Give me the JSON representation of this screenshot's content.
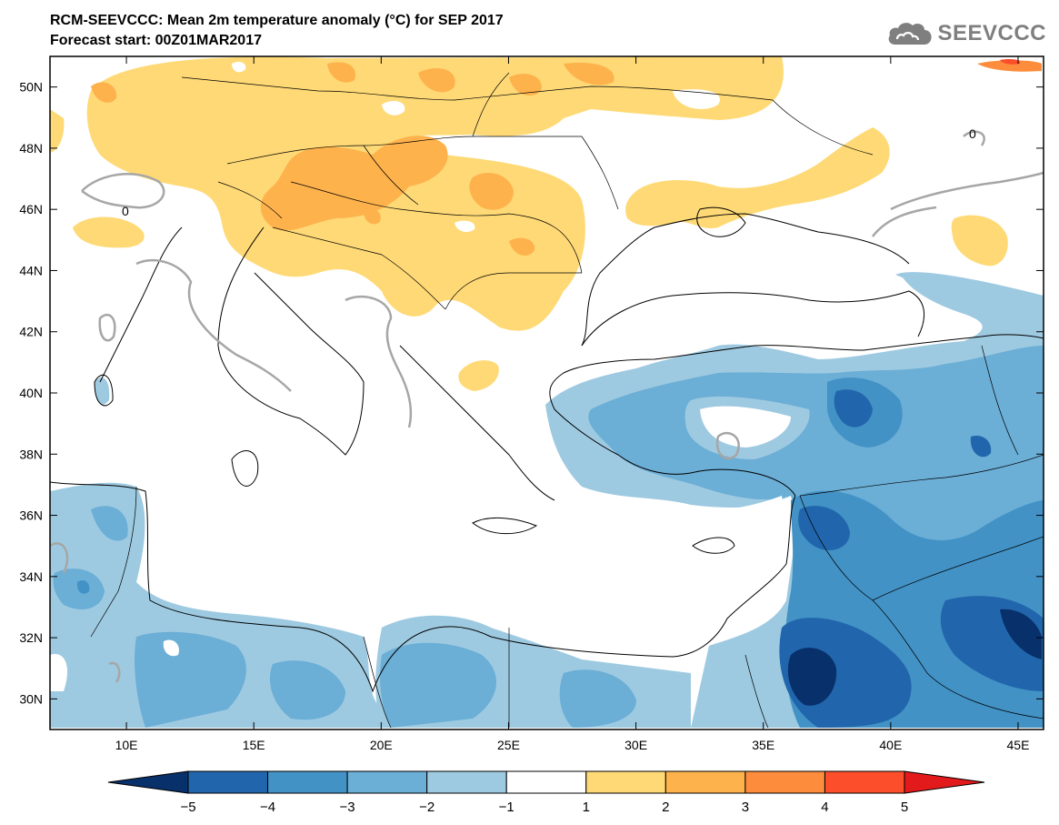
{
  "header": {
    "title_line1": "RCM-SEEVCCC: Mean 2m temperature anomaly (°C) for SEP 2017",
    "title_line2": "Forecast start: 00Z01MAR2017"
  },
  "logo": {
    "text": "SEEVCCC",
    "icon": "cloud-icon",
    "color": "#7f7f7f"
  },
  "map": {
    "lon_range": [
      7,
      46
    ],
    "lat_range": [
      29,
      51
    ],
    "lon_ticks": [
      {
        "value": 10,
        "label": "10E"
      },
      {
        "value": 15,
        "label": "15E"
      },
      {
        "value": 20,
        "label": "20E"
      },
      {
        "value": 25,
        "label": "25E"
      },
      {
        "value": 30,
        "label": "30E"
      },
      {
        "value": 35,
        "label": "35E"
      },
      {
        "value": 40,
        "label": "40E"
      },
      {
        "value": 45,
        "label": "45E"
      }
    ],
    "lat_ticks": [
      {
        "value": 30,
        "label": "30N"
      },
      {
        "value": 32,
        "label": "32N"
      },
      {
        "value": 34,
        "label": "34N"
      },
      {
        "value": 36,
        "label": "36N"
      },
      {
        "value": 38,
        "label": "38N"
      },
      {
        "value": 40,
        "label": "40N"
      },
      {
        "value": 42,
        "label": "42N"
      },
      {
        "value": 44,
        "label": "44N"
      },
      {
        "value": 46,
        "label": "46N"
      },
      {
        "value": 48,
        "label": "48N"
      },
      {
        "value": 50,
        "label": "50N"
      }
    ],
    "contour_labels": [
      {
        "lon": 9.8,
        "lat": 46.0,
        "text": "0"
      },
      {
        "lon": 37.5,
        "lat": 47.2,
        "text": "0"
      }
    ]
  },
  "colorbar": {
    "levels": [
      "−5",
      "−4",
      "−3",
      "−2",
      "−1",
      "1",
      "2",
      "3",
      "4",
      "5"
    ],
    "colors": [
      "#08306b",
      "#2166ac",
      "#4292c6",
      "#6baed6",
      "#9ecae1",
      "#ffffff",
      "#fed976",
      "#feb24c",
      "#fd8d3c",
      "#fc4e2a",
      "#e31a1c"
    ]
  }
}
